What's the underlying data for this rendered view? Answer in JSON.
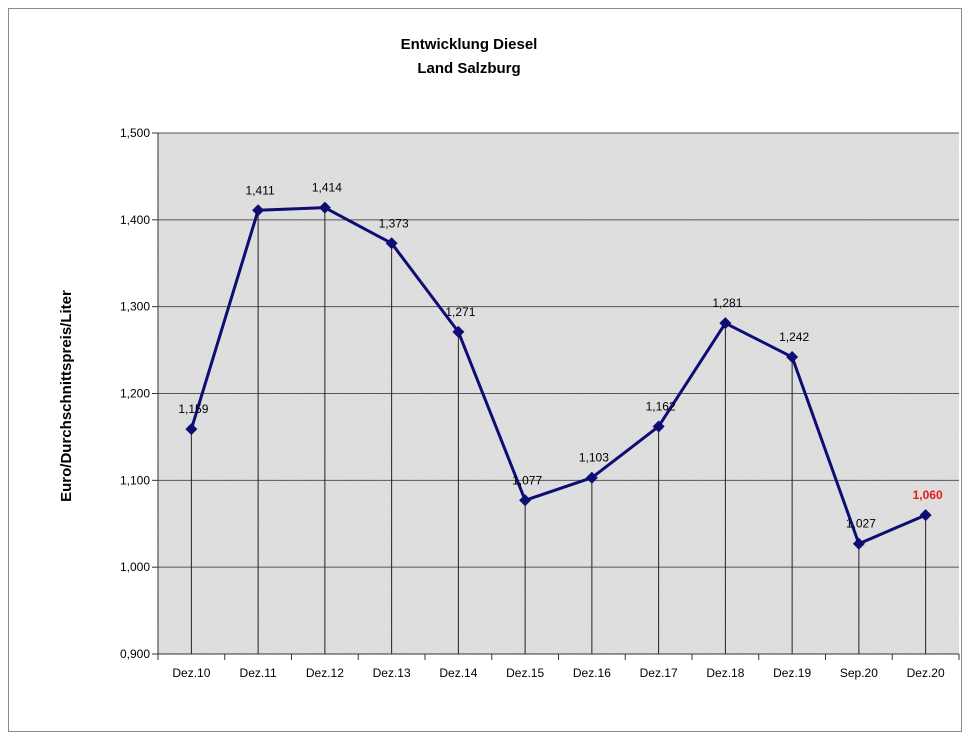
{
  "chart_data": {
    "type": "line",
    "title": "Entwicklung Diesel",
    "subtitle": "Land Salzburg",
    "ylabel": "Euro/Durchschnittspreis/Liter",
    "xlabel": "",
    "categories": [
      "Dez.10",
      "Dez.11",
      "Dez.12",
      "Dez.13",
      "Dez.14",
      "Dez.15",
      "Dez.16",
      "Dez.17",
      "Dez.18",
      "Dez.19",
      "Sep.20",
      "Dez.20"
    ],
    "values": [
      1.159,
      1.411,
      1.414,
      1.373,
      1.271,
      1.077,
      1.103,
      1.162,
      1.281,
      1.242,
      1.027,
      1.06
    ],
    "data_labels": [
      "1,159",
      "1,411",
      "1,414",
      "1,373",
      "1,271",
      "1,077",
      "1,103",
      "1,162",
      "1,281",
      "1,242",
      "1,027",
      "1,060"
    ],
    "highlight_index": 11,
    "ylim": [
      0.9,
      1.5
    ],
    "yticks": [
      0.9,
      1.0,
      1.1,
      1.2,
      1.3,
      1.4,
      1.5
    ],
    "ytick_labels": [
      "0,900",
      "1,000",
      "1,100",
      "1,200",
      "1,300",
      "1,400",
      "1,500"
    ],
    "grid": "horizontal",
    "drop_lines": true,
    "colors": {
      "line": "#0d0d73",
      "marker": "#0d0d73",
      "highlight_label": "#e31b1b",
      "plot_bg": "#e3e3e3",
      "grid": "#555555"
    }
  }
}
